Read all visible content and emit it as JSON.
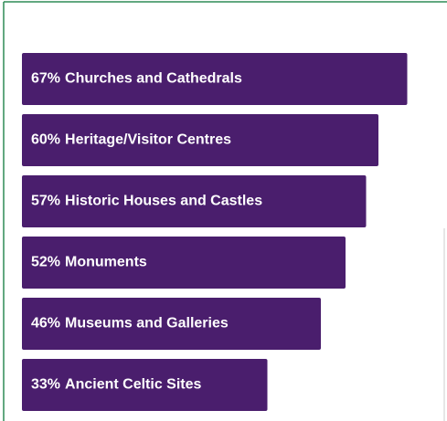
{
  "chart_data": {
    "type": "barh",
    "categories": [
      "Churches and Cathedrals",
      "Heritage/Visitor Centres",
      "Historic Houses and Castles",
      "Monuments",
      "Museums and Galleries",
      "Ancient Celtic Sites"
    ],
    "values": [
      67,
      60,
      57,
      52,
      46,
      33
    ],
    "value_labels": [
      "67%",
      "60%",
      "57%",
      "52%",
      "46%",
      "33%"
    ],
    "color": "#4a1e6d"
  }
}
